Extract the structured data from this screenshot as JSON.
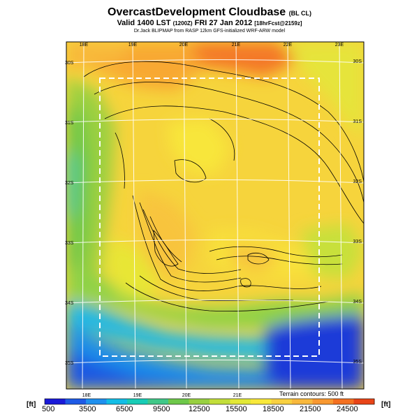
{
  "title": {
    "main": "OvercastDevelopment Cloudbase",
    "tag": "(BL CL)"
  },
  "subtitle": {
    "main": "Valid 1400 LST",
    "code": "(1200Z)",
    "date": "FRI 27 Jan 2012",
    "fcst": "[18hrFcst@2159z]"
  },
  "credit": "Dr.Jack BLIPMAP from RASP 12km GFS-initialized WRF-ARW model",
  "map": {
    "lon_top": [
      "18E",
      "19E",
      "20E",
      "21E",
      "22E",
      "23E"
    ],
    "lon_bottom": [
      "18E",
      "19E",
      "20E",
      "21E"
    ],
    "lat_left": [
      "30S",
      "31S",
      "32S",
      "33S",
      "34S",
      "35S"
    ],
    "lat_right": [
      "30S",
      "31S",
      "32S",
      "33S",
      "34S",
      "35S"
    ],
    "terrain_note": "Terrain contours: 500 ft"
  },
  "colorbar": {
    "unit_left": "[ft]",
    "unit_right": "[ft]",
    "labels": [
      "500",
      "3500",
      "6500",
      "9500",
      "12500",
      "15500",
      "18500",
      "21500",
      "24500"
    ],
    "colors": [
      "#1a1ad8",
      "#1e5ae6",
      "#1f90ee",
      "#12bde6",
      "#18ccb6",
      "#40c888",
      "#6ec84a",
      "#98d040",
      "#c2de3a",
      "#e2e836",
      "#f8e83a",
      "#f8d040",
      "#f8b83c",
      "#f89830",
      "#f47020",
      "#e84418"
    ]
  }
}
